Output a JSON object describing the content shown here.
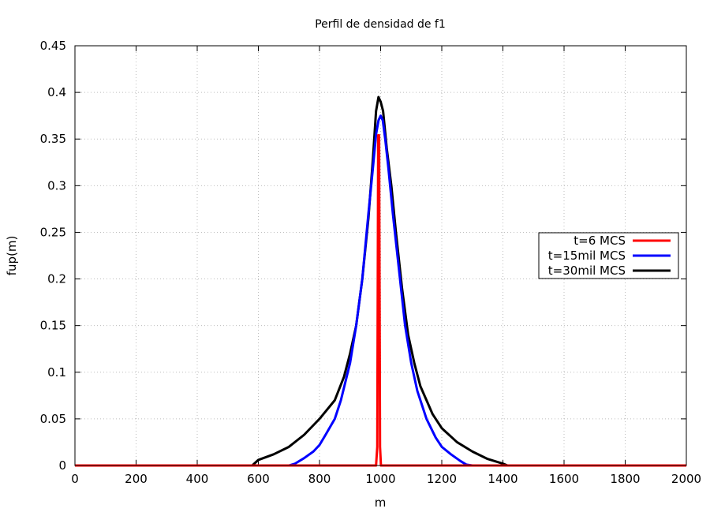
{
  "chart_data": {
    "type": "line",
    "title": "Perfil de densidad de f1",
    "xlabel": "m",
    "ylabel": "fup(m)",
    "xlim": [
      0,
      2000
    ],
    "ylim": [
      0,
      0.45
    ],
    "xticks": [
      0,
      200,
      400,
      600,
      800,
      1000,
      1200,
      1400,
      1600,
      1800,
      2000
    ],
    "yticks": [
      0,
      0.05,
      0.1,
      0.15,
      0.2,
      0.25,
      0.3,
      0.35,
      0.4,
      0.45
    ],
    "xtick_labels": [
      "0",
      "200",
      "400",
      "600",
      "800",
      "1000",
      "1200",
      "1400",
      "1600",
      "1800",
      "2000"
    ],
    "ytick_labels": [
      "0",
      "0.05",
      "0.1",
      "0.15",
      "0.2",
      "0.25",
      "0.3",
      "0.35",
      "0.4",
      "0.45"
    ],
    "grid": true,
    "legend_position": "right-middle",
    "series": [
      {
        "name": "t=6 MCS",
        "color": "#ff0000",
        "x": [
          0,
          985,
          989,
          992,
          995,
          998,
          1001,
          2000
        ],
        "y": [
          0,
          0,
          0.02,
          0.354,
          0.354,
          0.02,
          0,
          0
        ]
      },
      {
        "name": "t=15mil MCS",
        "color": "#0000ff",
        "x": [
          0,
          700,
          720,
          750,
          780,
          800,
          820,
          850,
          870,
          900,
          920,
          940,
          960,
          975,
          985,
          993,
          1000,
          1007,
          1015,
          1025,
          1040,
          1060,
          1080,
          1100,
          1120,
          1150,
          1180,
          1200,
          1230,
          1260,
          1280,
          1300,
          2000
        ],
        "y": [
          0,
          0,
          0.002,
          0.008,
          0.015,
          0.022,
          0.033,
          0.05,
          0.07,
          0.11,
          0.15,
          0.2,
          0.27,
          0.32,
          0.355,
          0.37,
          0.375,
          0.37,
          0.35,
          0.32,
          0.27,
          0.21,
          0.15,
          0.11,
          0.08,
          0.05,
          0.03,
          0.02,
          0.012,
          0.005,
          0.001,
          0,
          0
        ]
      },
      {
        "name": "t=30mil MCS",
        "color": "#000000",
        "x": [
          0,
          580,
          600,
          650,
          700,
          750,
          800,
          850,
          880,
          900,
          920,
          940,
          960,
          975,
          985,
          993,
          1000,
          1008,
          1020,
          1035,
          1050,
          1070,
          1090,
          1110,
          1130,
          1150,
          1170,
          1200,
          1250,
          1300,
          1350,
          1400,
          1415,
          2000
        ],
        "y": [
          0,
          0,
          0.006,
          0.012,
          0.02,
          0.033,
          0.05,
          0.07,
          0.095,
          0.12,
          0.15,
          0.2,
          0.265,
          0.33,
          0.38,
          0.395,
          0.39,
          0.38,
          0.34,
          0.3,
          0.25,
          0.19,
          0.14,
          0.11,
          0.085,
          0.07,
          0.055,
          0.04,
          0.025,
          0.015,
          0.007,
          0.002,
          0,
          0
        ]
      }
    ]
  }
}
